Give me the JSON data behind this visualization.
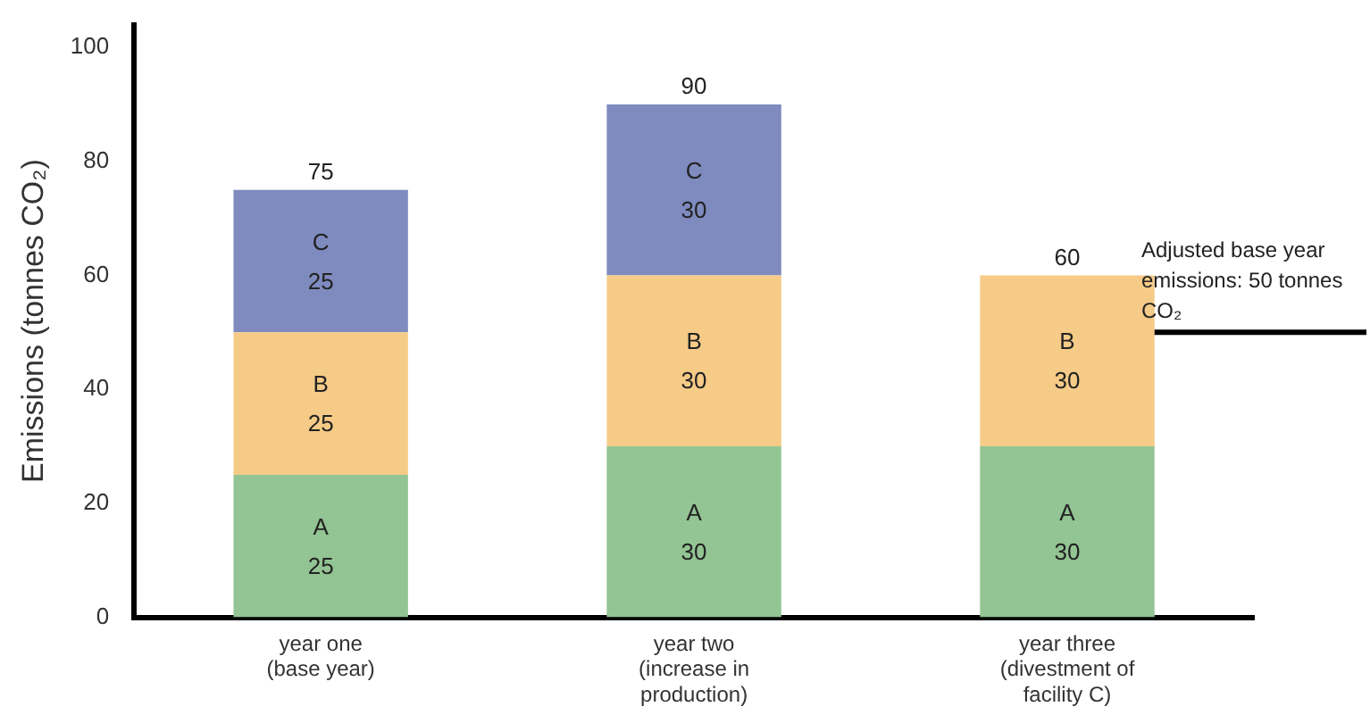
{
  "chart_data": {
    "type": "bar",
    "stacked": true,
    "ylabel": "Emissions (tonnes CO₂)",
    "categories": [
      "year one (base year)",
      "year two (increase in production)",
      "year three (divestment of facility C)"
    ],
    "series": [
      {
        "name": "A",
        "color": "#93c493",
        "values": [
          25,
          30,
          30
        ]
      },
      {
        "name": "B",
        "color": "#f5cb87",
        "values": [
          25,
          30,
          30
        ]
      },
      {
        "name": "C",
        "color": "#7f8bbf",
        "values": [
          25,
          30,
          null
        ]
      }
    ],
    "totals": [
      "75",
      "90",
      "60"
    ],
    "data_labels": true,
    "ylim": [
      0,
      104
    ],
    "yticks": [
      0,
      20,
      40,
      60,
      80,
      100
    ],
    "grid": false,
    "legend": false,
    "ref_lines": [
      {
        "axis": "y",
        "value": 50,
        "label": "Adjusted base year emissions: 50 tonnes CO₂",
        "color": "#000000"
      }
    ]
  }
}
